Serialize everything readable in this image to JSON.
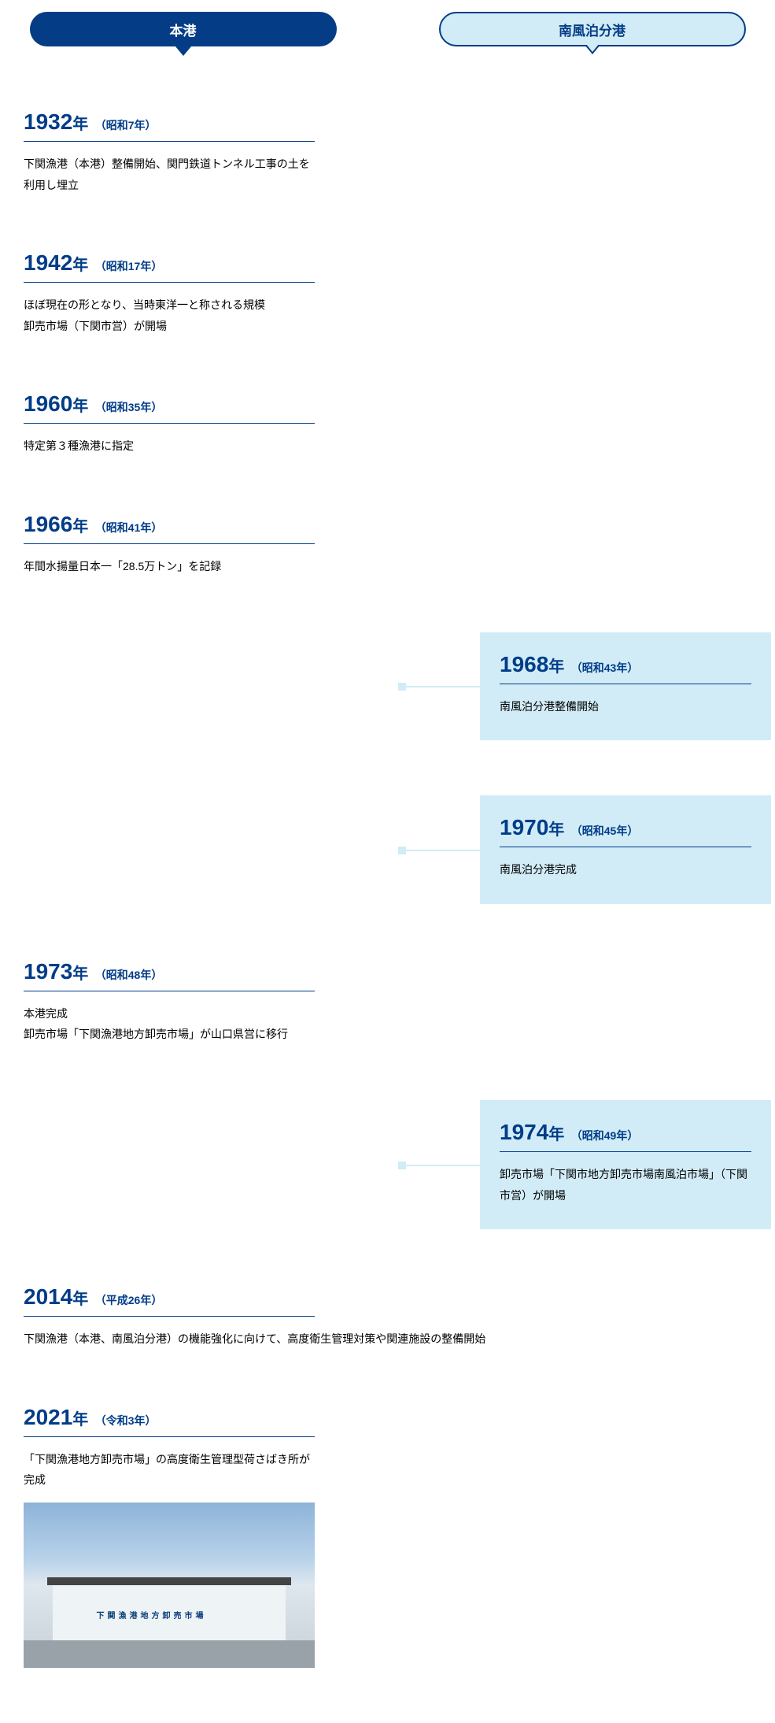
{
  "tabs": {
    "left": "本港",
    "right": "南風泊分港"
  },
  "entries": [
    {
      "side": "left",
      "year": "1932",
      "era": "（昭和7年）",
      "desc": "下関漁港（本港）整備開始、関門鉄道トンネル工事の土を利用し埋立"
    },
    {
      "side": "left",
      "year": "1942",
      "era": "（昭和17年）",
      "desc": "ほぼ現在の形となり、当時東洋一と称される規模\n卸売市場（下関市営）が開場"
    },
    {
      "side": "left",
      "year": "1960",
      "era": "（昭和35年）",
      "desc": "特定第３種漁港に指定"
    },
    {
      "side": "left",
      "year": "1966",
      "era": "（昭和41年）",
      "desc": "年間水揚量日本一「28.5万トン」を記録"
    },
    {
      "side": "right",
      "year": "1968",
      "era": "（昭和43年）",
      "desc": "南風泊分港整備開始"
    },
    {
      "side": "right",
      "year": "1970",
      "era": "（昭和45年）",
      "desc": "南風泊分港完成"
    },
    {
      "side": "left",
      "year": "1973",
      "era": "（昭和48年）",
      "desc": "本港完成\n卸売市場「下関漁港地方卸売市場」が山口県営に移行"
    },
    {
      "side": "right",
      "year": "1974",
      "era": "（昭和49年）",
      "desc": "卸売市場「下関市地方卸売市場南風泊市場」（下関市営）が開場"
    },
    {
      "side": "full",
      "year": "2014",
      "era": "（平成26年）",
      "desc": "下関漁港（本港、南風泊分港）の機能強化に向けて、高度衛生管理対策や関連施設の整備開始",
      "fullYearWidth": true
    },
    {
      "side": "left",
      "year": "2021",
      "era": "（令和3年）",
      "desc": "「下関漁港地方卸売市場」の高度衛生管理型荷さばき所が完成",
      "photo": true,
      "photoSign": "下関漁港地方卸売市場"
    }
  ],
  "yearSuffix": "年",
  "colors": {
    "primary": "#043d85",
    "lightBlue": "#d1ecf7"
  }
}
